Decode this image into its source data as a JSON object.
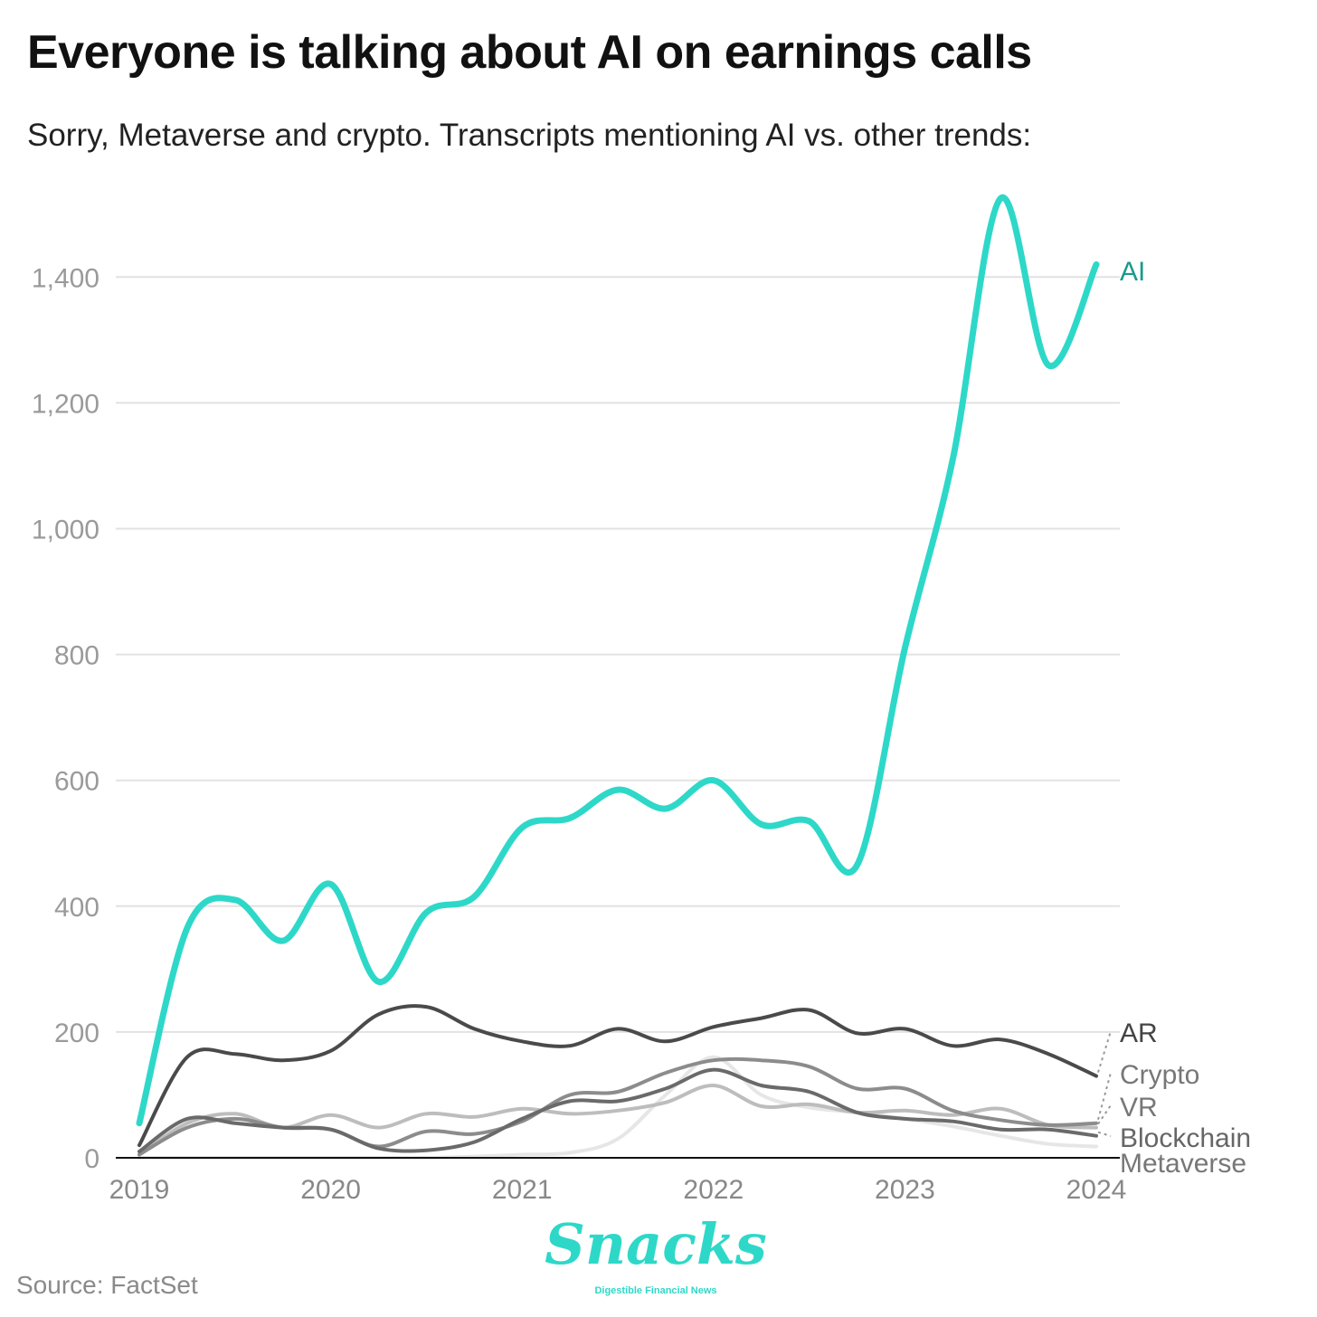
{
  "title": "Everyone is talking about AI on earnings calls",
  "subtitle": "Sorry, Metaverse and crypto. Transcripts mentioning AI vs. other trends:",
  "source": "Source: FactSet",
  "brand": {
    "name": "Snacks",
    "tagline": "Digestible Financial News",
    "color": "#2ed8c8"
  },
  "chart_data": {
    "type": "line",
    "title": "Everyone is talking about AI on earnings calls",
    "subtitle": "Sorry, Metaverse and crypto. Transcripts mentioning AI vs. other trends:",
    "xlabel": "",
    "ylabel": "",
    "xlim": [
      2019,
      2024
    ],
    "ylim": [
      0,
      1530
    ],
    "x_ticks": [
      "2019",
      "2020",
      "2021",
      "2022",
      "2023",
      "2024"
    ],
    "y_ticks": [
      0,
      200,
      400,
      600,
      800,
      1000,
      1200,
      1400
    ],
    "y_tick_labels": [
      "0",
      "200",
      "400",
      "600",
      "800",
      "1,000",
      "1,200",
      "1,400"
    ],
    "grid": "horizontal",
    "x": [
      2019.0,
      2019.25,
      2019.5,
      2019.75,
      2020.0,
      2020.25,
      2020.5,
      2020.75,
      2021.0,
      2021.25,
      2021.5,
      2021.75,
      2022.0,
      2022.25,
      2022.5,
      2022.75,
      2023.0,
      2023.25,
      2023.5,
      2023.75,
      2024.0
    ],
    "series": [
      {
        "name": "AI",
        "label": "AI",
        "color": "#2ed8c8",
        "values": [
          55,
          365,
          410,
          345,
          435,
          280,
          390,
          415,
          525,
          540,
          585,
          555,
          600,
          530,
          535,
          465,
          810,
          1110,
          1525,
          1260,
          1420
        ]
      },
      {
        "name": "AR",
        "label": "AR",
        "color": "#4a4a4a",
        "values": [
          20,
          160,
          165,
          155,
          170,
          228,
          240,
          205,
          185,
          178,
          205,
          185,
          208,
          222,
          235,
          198,
          205,
          178,
          188,
          165,
          130
        ]
      },
      {
        "name": "Crypto",
        "label": "Crypto",
        "color": "#8c8c8c",
        "values": [
          5,
          48,
          62,
          48,
          45,
          18,
          42,
          38,
          58,
          100,
          105,
          135,
          155,
          155,
          145,
          110,
          110,
          75,
          60,
          52,
          55
        ]
      },
      {
        "name": "VR",
        "label": "VR",
        "color": "#bdbdbd",
        "values": [
          5,
          55,
          70,
          48,
          68,
          48,
          70,
          65,
          78,
          70,
          75,
          88,
          115,
          82,
          85,
          72,
          75,
          68,
          78,
          52,
          48
        ]
      },
      {
        "name": "Blockchain",
        "label": "Blockchain",
        "color": "#6a6a6a",
        "values": [
          10,
          62,
          55,
          48,
          45,
          15,
          12,
          25,
          62,
          90,
          90,
          110,
          140,
          115,
          105,
          72,
          62,
          58,
          45,
          45,
          35
        ]
      },
      {
        "name": "Metaverse",
        "label": "Metaverse",
        "color": "#e6e6e6",
        "values": [
          0,
          0,
          0,
          0,
          0,
          0,
          0,
          2,
          5,
          8,
          30,
          100,
          160,
          100,
          80,
          72,
          62,
          50,
          35,
          22,
          18
        ]
      }
    ]
  }
}
